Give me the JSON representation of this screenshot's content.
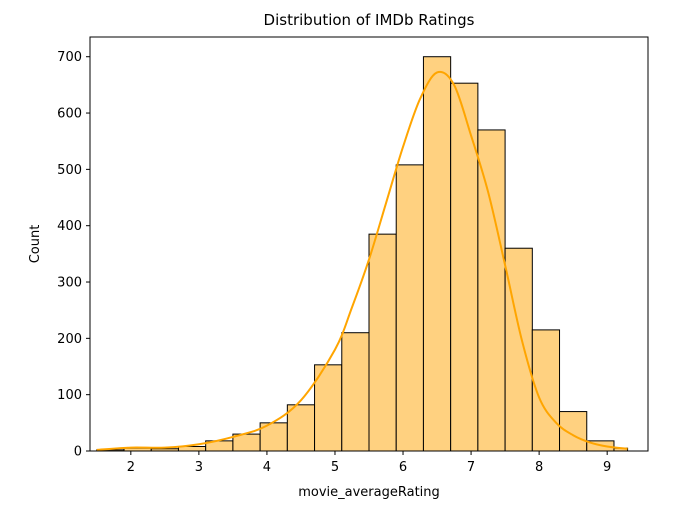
{
  "chart_data": {
    "type": "bar",
    "title": "Distribution of IMDb Ratings",
    "xlabel": "movie_averageRating",
    "ylabel": "Count",
    "xlim": [
      1.4,
      9.6
    ],
    "ylim": [
      0,
      735
    ],
    "xticks": [
      2,
      3,
      4,
      5,
      6,
      7,
      8,
      9
    ],
    "yticks": [
      0,
      100,
      200,
      300,
      400,
      500,
      600,
      700
    ],
    "bin_edges": [
      1.5,
      1.9,
      2.3,
      2.7,
      3.1,
      3.5,
      3.9,
      4.3,
      4.7,
      5.1,
      5.5,
      5.9,
      6.3,
      6.7,
      7.1,
      7.5,
      7.9,
      8.3,
      8.7,
      9.1,
      9.3
    ],
    "counts": [
      2,
      5,
      4,
      8,
      18,
      30,
      50,
      82,
      153,
      210,
      385,
      508,
      700,
      653,
      570,
      360,
      215,
      70,
      18,
      5
    ],
    "kde": {
      "name": "",
      "x": [
        1.5,
        2.0,
        2.5,
        3.0,
        3.5,
        4.0,
        4.5,
        5.0,
        5.25,
        5.5,
        5.75,
        6.0,
        6.25,
        6.5,
        6.75,
        7.0,
        7.25,
        7.5,
        7.75,
        8.0,
        8.25,
        8.5,
        8.75,
        9.0,
        9.3
      ],
      "y": [
        2,
        6,
        6,
        12,
        25,
        45,
        90,
        180,
        255,
        340,
        440,
        540,
        625,
        672,
        650,
        560,
        460,
        330,
        195,
        95,
        50,
        28,
        15,
        8,
        4
      ]
    },
    "bar_fill": "#ffd180",
    "bar_edge": "#000000",
    "kde_color": "#ffa500",
    "grid": false
  }
}
